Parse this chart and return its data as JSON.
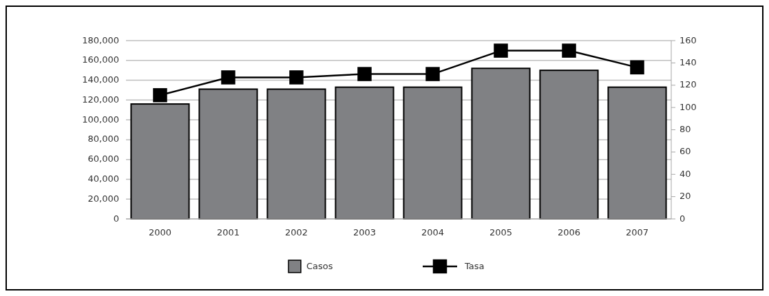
{
  "chart_data": {
    "type": "bar",
    "categories": [
      "2000",
      "2001",
      "2002",
      "2003",
      "2004",
      "2005",
      "2006",
      "2007"
    ],
    "series": [
      {
        "name": "Casos",
        "color": "#808184",
        "values": [
          116000,
          131000,
          131000,
          133000,
          133000,
          152000,
          150000,
          133000
        ]
      },
      {
        "name": "Tasa",
        "type": "line",
        "axis": "y2",
        "color": "#000000",
        "marker": "square",
        "values": [
          111,
          127,
          127,
          130,
          130,
          151,
          151,
          136
        ]
      }
    ],
    "ylim": [
      0,
      180000
    ],
    "yticks": [
      {
        "value": 0,
        "label": "0"
      },
      {
        "value": 20000,
        "label": "20,000"
      },
      {
        "value": 40000,
        "label": "40,000"
      },
      {
        "value": 60000,
        "label": "60,000"
      },
      {
        "value": 80000,
        "label": "80,000"
      },
      {
        "value": 100000,
        "label": "100,000"
      },
      {
        "value": 120000,
        "label": "120,000"
      },
      {
        "value": 140000,
        "label": "140,000"
      },
      {
        "value": 160000,
        "label": "160,000"
      },
      {
        "value": 180000,
        "label": "180,000"
      }
    ],
    "y2lim": [
      0,
      160
    ],
    "y2ticks": [
      0,
      20,
      40,
      60,
      80,
      100,
      120,
      140,
      160
    ],
    "grid": "y",
    "legend": "bottom"
  }
}
